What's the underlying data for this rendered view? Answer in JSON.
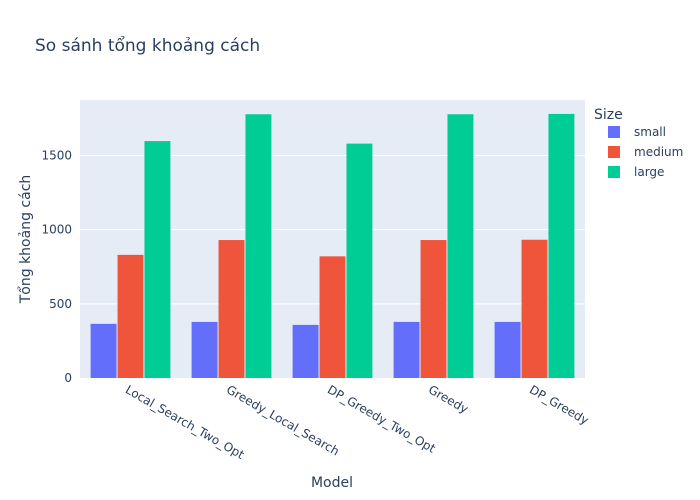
{
  "chart_data": {
    "type": "bar",
    "title": "So sánh tổng khoảng cách",
    "xlabel": "Model",
    "ylabel": "Tổng khoảng cách",
    "categories": [
      "Local_Search_Two_Opt",
      "Greedy_Local_Search",
      "DP_Greedy_Two_Opt",
      "Greedy",
      "DP_Greedy"
    ],
    "series": [
      {
        "name": "small",
        "color": "#636efa",
        "values": [
          365,
          378,
          358,
          378,
          378
        ]
      },
      {
        "name": "medium",
        "color": "#ef553b",
        "values": [
          830,
          930,
          820,
          930,
          932
        ]
      },
      {
        "name": "large",
        "color": "#00cc96",
        "values": [
          1597,
          1778,
          1580,
          1778,
          1780
        ]
      }
    ],
    "ylim": [
      0,
      1874
    ],
    "yticks": [
      0,
      500,
      1000,
      1500
    ],
    "grid": true,
    "legend": {
      "title": "Size",
      "placement": "top-right"
    }
  }
}
